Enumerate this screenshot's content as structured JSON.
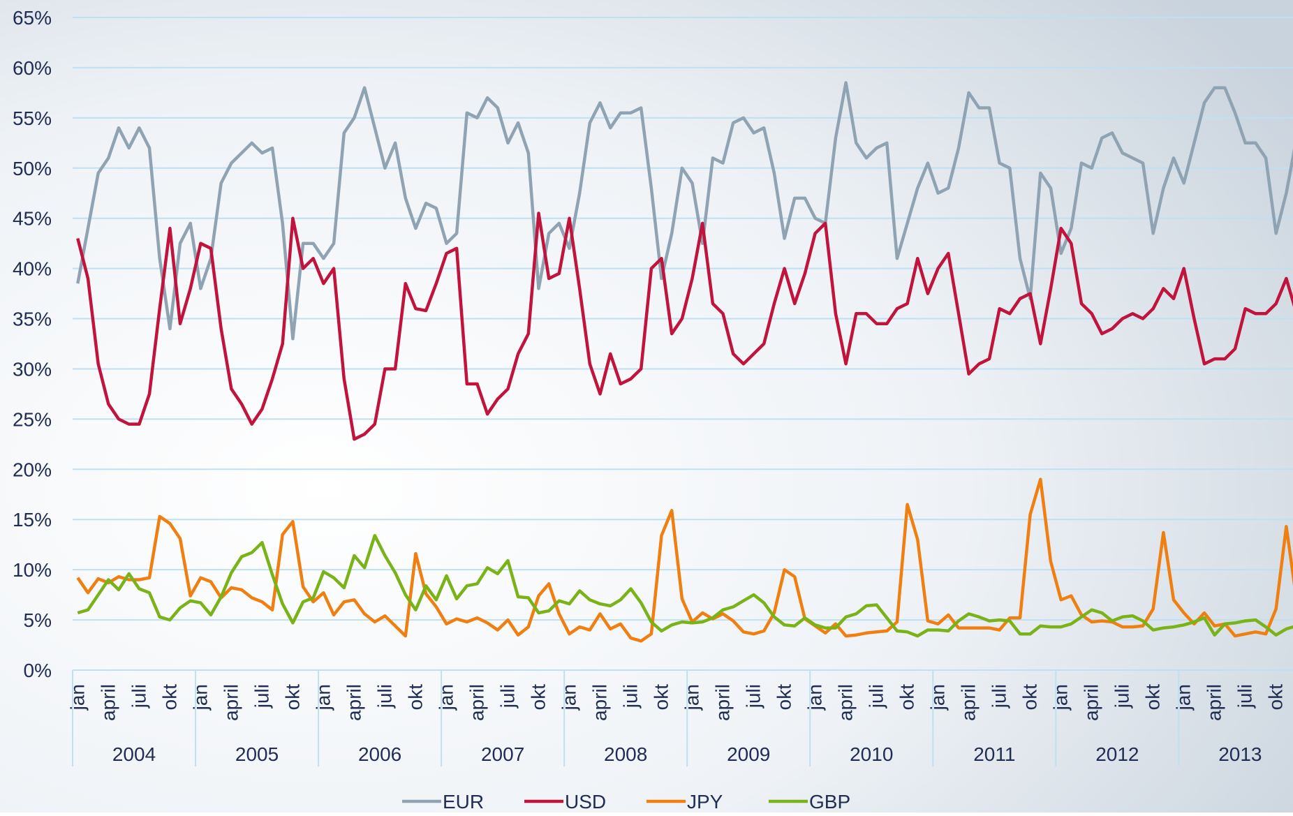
{
  "chart_data": {
    "type": "line",
    "categories": [
      "jan",
      null,
      null,
      "april",
      null,
      null,
      "juli",
      null,
      null,
      "okt",
      null,
      null,
      "jan",
      null,
      null,
      "april",
      null,
      null,
      "juli",
      null,
      null,
      "okt",
      null,
      null,
      "jan",
      null,
      null,
      "april",
      null,
      null,
      "juli",
      null,
      null,
      "okt",
      null,
      null,
      "jan",
      null,
      null,
      "april",
      null,
      null,
      "juli",
      null,
      null,
      "okt",
      null,
      null,
      "jan",
      null,
      null,
      "april",
      null,
      null,
      "juli",
      null,
      null,
      "okt",
      null,
      null,
      "jan",
      null,
      null,
      "april",
      null,
      null,
      "juli",
      null,
      null,
      "okt",
      null,
      null,
      "jan",
      null,
      null,
      "april",
      null,
      null,
      "juli",
      null,
      null,
      "okt",
      null,
      null,
      "jan",
      null,
      null,
      "april",
      null,
      null,
      "juli",
      null,
      null,
      "okt",
      null,
      null,
      "jan",
      null,
      null,
      "april",
      null,
      null,
      "juli",
      null,
      null,
      "okt",
      null,
      null,
      "jan",
      null,
      null,
      "april",
      null,
      null,
      "juli",
      null,
      null,
      "okt",
      null,
      null
    ],
    "groups": [
      "2004",
      "2005",
      "2006",
      "2007",
      "2008",
      "2009",
      "2010",
      "2011",
      "2012",
      "2013"
    ],
    "ylim": [
      0,
      65
    ],
    "yticks": [
      {
        "value": 0,
        "label": "0%"
      },
      {
        "value": 5,
        "label": "5%"
      },
      {
        "value": 10,
        "label": "10%"
      },
      {
        "value": 15,
        "label": "15%"
      },
      {
        "value": 20,
        "label": "20%"
      },
      {
        "value": 25,
        "label": "25%"
      },
      {
        "value": 30,
        "label": "30%"
      },
      {
        "value": 35,
        "label": "35%"
      },
      {
        "value": 40,
        "label": "40%"
      },
      {
        "value": 45,
        "label": "45%"
      },
      {
        "value": 50,
        "label": "50%"
      },
      {
        "value": 55,
        "label": "55%"
      },
      {
        "value": 60,
        "label": "60%"
      },
      {
        "value": 65,
        "label": "65%"
      }
    ],
    "grid": true,
    "legend": "bottom",
    "series": [
      {
        "name": "EUR",
        "color": "#8fa3b3",
        "values": [
          38.5,
          44,
          49.5,
          51,
          54,
          52,
          54,
          52,
          41,
          34,
          42.5,
          44.5,
          38,
          41,
          48.5,
          50.5,
          51.5,
          52.5,
          51.5,
          52,
          44.5,
          33,
          42.5,
          42.5,
          41,
          42.5,
          53.5,
          55,
          58,
          54,
          50,
          52.5,
          47,
          44,
          46.5,
          46,
          42.5,
          43.5,
          55.5,
          55,
          57,
          56,
          52.5,
          54.5,
          51.5,
          38,
          43.5,
          44.5,
          42,
          47.5,
          54.5,
          56.5,
          54,
          55.5,
          55.5,
          56,
          48,
          39,
          43.5,
          50,
          48.5,
          42.5,
          51,
          50.5,
          54.5,
          55,
          53.5,
          54,
          49.5,
          43,
          47,
          47,
          45,
          44.5,
          53,
          58.5,
          52.5,
          51,
          52,
          52.5,
          41,
          44.5,
          48,
          50.5,
          47.5,
          48,
          52,
          57.5,
          56,
          56,
          50.5,
          50,
          41,
          37,
          49.5,
          48,
          41.5,
          44,
          50.5,
          50,
          53,
          53.5,
          51.5,
          51,
          50.5,
          43.5,
          48,
          51,
          48.5,
          52.5,
          56.5,
          58,
          58,
          55.5,
          52.5,
          52.5,
          51,
          43.5,
          47.5,
          53
        ]
      },
      {
        "name": "USD",
        "color": "#c0143c",
        "values": [
          43,
          39,
          30.5,
          26.5,
          25,
          24.5,
          24.5,
          27.5,
          36,
          44,
          34.5,
          38,
          42.5,
          42,
          34,
          28,
          26.5,
          24.5,
          26,
          29,
          32.5,
          45,
          40,
          41,
          38.5,
          40,
          29,
          23,
          23.5,
          24.5,
          30,
          30,
          38.5,
          36,
          35.8,
          38.5,
          41.5,
          42,
          28.5,
          28.5,
          25.5,
          27,
          28,
          31.5,
          33.5,
          45.5,
          39,
          39.5,
          45,
          38,
          30.5,
          27.5,
          31.5,
          28.5,
          29,
          30,
          40,
          41,
          33.5,
          35,
          39,
          44.5,
          36.5,
          35.5,
          31.5,
          30.5,
          31.5,
          32.5,
          36.5,
          40,
          36.5,
          39.5,
          43.5,
          44.5,
          35.5,
          30.5,
          35.5,
          35.5,
          34.5,
          34.5,
          36,
          36.5,
          41,
          37.5,
          40,
          41.5,
          35.5,
          29.5,
          30.5,
          31,
          36,
          35.5,
          37,
          37.5,
          32.5,
          38,
          44,
          42.5,
          36.5,
          35.5,
          33.5,
          34,
          35,
          35.5,
          35,
          36,
          38,
          37,
          40,
          35,
          30.5,
          31,
          31,
          32,
          36,
          35.5,
          35.5,
          36.5,
          39,
          35.5
        ]
      },
      {
        "name": "JPY",
        "color": "#f07f12",
        "values": [
          9.2,
          7.7,
          9.1,
          8.7,
          9.3,
          9,
          9,
          9.2,
          15.3,
          14.6,
          13.1,
          7.4,
          9.2,
          8.8,
          7.2,
          8.2,
          8,
          7.2,
          6.8,
          6,
          13.5,
          14.8,
          8.3,
          6.8,
          7.7,
          5.5,
          6.8,
          7,
          5.6,
          4.8,
          5.4,
          4.4,
          3.4,
          11.6,
          7.6,
          6.3,
          4.6,
          5.1,
          4.8,
          5.2,
          4.7,
          4,
          5,
          3.5,
          4.3,
          7.4,
          8.6,
          5.6,
          3.6,
          4.3,
          4,
          5.6,
          4.1,
          4.6,
          3.2,
          2.9,
          3.6,
          13.4,
          15.9,
          7.1,
          4.8,
          5.7,
          5.1,
          5.6,
          4.9,
          3.8,
          3.6,
          3.9,
          5.7,
          10,
          9.3,
          5.1,
          4.4,
          3.7,
          4.6,
          3.4,
          3.5,
          3.7,
          3.8,
          3.9,
          4.8,
          16.5,
          13,
          4.9,
          4.6,
          5.5,
          4.2,
          4.2,
          4.2,
          4.2,
          4,
          5.2,
          5.2,
          15.5,
          19,
          10.8,
          7,
          7.4,
          5.5,
          4.8,
          4.9,
          4.8,
          4.3,
          4.3,
          4.4,
          6.1,
          13.7,
          7,
          5.7,
          4.6,
          5.7,
          4.4,
          4.6,
          3.4,
          3.6,
          3.8,
          3.6,
          6.1,
          14.3,
          7
        ]
      },
      {
        "name": "GBP",
        "color": "#7ab317",
        "values": [
          5.7,
          6,
          7.5,
          9,
          8,
          9.6,
          8.1,
          7.7,
          5.3,
          5,
          6.2,
          6.9,
          6.7,
          5.5,
          7.3,
          9.7,
          11.3,
          11.7,
          12.7,
          9.5,
          6.6,
          4.7,
          6.8,
          7.2,
          9.8,
          9.2,
          8.2,
          11.4,
          10.2,
          13.4,
          11.4,
          9.7,
          7.5,
          6,
          8.4,
          7,
          9.4,
          7.1,
          8.4,
          8.6,
          10.2,
          9.6,
          10.9,
          7.3,
          7.2,
          5.7,
          5.9,
          6.9,
          6.6,
          7.9,
          7,
          6.6,
          6.4,
          7,
          8.1,
          6.7,
          4.8,
          3.9,
          4.5,
          4.8,
          4.7,
          4.8,
          5.2,
          6,
          6.3,
          6.9,
          7.5,
          6.7,
          5.3,
          4.5,
          4.4,
          5.2,
          4.5,
          4.2,
          4.2,
          5.3,
          5.6,
          6.4,
          6.5,
          5.2,
          3.9,
          3.8,
          3.4,
          4,
          4,
          3.9,
          4.9,
          5.6,
          5.3,
          4.9,
          5,
          4.9,
          3.6,
          3.6,
          4.4,
          4.3,
          4.3,
          4.6,
          5.3,
          6,
          5.7,
          4.9,
          5.3,
          5.4,
          4.9,
          4,
          4.2,
          4.3,
          4.5,
          4.8,
          5.2,
          3.5,
          4.6,
          4.7,
          4.9,
          5,
          4.3,
          3.5,
          4.1,
          4.4
        ]
      }
    ]
  }
}
